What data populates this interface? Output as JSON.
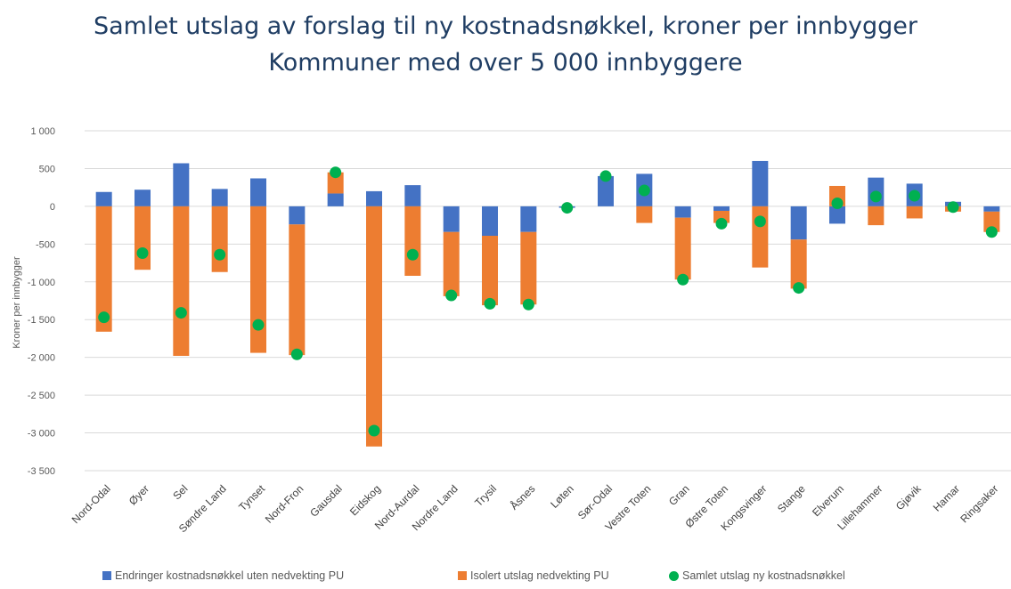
{
  "chart_data": {
    "type": "bar",
    "stacked": true,
    "title": "Samlet utslag av forslag til ny kostnadsnøkkel, kroner per innbygger",
    "subtitle": "Kommuner med over 5 000 innbyggere",
    "ylabel": "Kroner per innbygger",
    "ylim": [
      -3500,
      1000
    ],
    "yticks": [
      1000,
      500,
      0,
      -500,
      -1000,
      -1500,
      -2000,
      -2500,
      -3000,
      -3500
    ],
    "ytick_labels": [
      "1 000",
      "500",
      "0",
      "-500",
      "-1 000",
      "-1 500",
      "-2 000",
      "-2 500",
      "-3 000",
      "-3 500"
    ],
    "grid": true,
    "legend_position": "bottom",
    "categories": [
      "Nord-Odal",
      "Øyer",
      "Sel",
      "Søndre Land",
      "Tynset",
      "Nord-Fron",
      "Gausdal",
      "Eidskog",
      "Nord-Aurdal",
      "Nordre Land",
      "Trysil",
      "Åsnes",
      "Løten",
      "Sør-Odal",
      "Vestre Toten",
      "Gran",
      "Østre Toten",
      "Kongsvinger",
      "Stange",
      "Elverum",
      "Lillehammer",
      "Gjøvik",
      "Hamar",
      "Ringsaker"
    ],
    "series": [
      {
        "name": "Endringer kostnadsnøkkel uten nedvekting PU",
        "type": "bar",
        "color": "#4472c4",
        "values": [
          190,
          220,
          570,
          230,
          370,
          -240,
          170,
          200,
          280,
          -340,
          -390,
          -340,
          -20,
          400,
          430,
          -150,
          -60,
          600,
          -440,
          -230,
          380,
          300,
          60,
          -70
        ]
      },
      {
        "name": "Isolert utslag nedvekting PU",
        "type": "bar",
        "color": "#ed7d31",
        "values": [
          -1660,
          -840,
          -1980,
          -870,
          -1940,
          -1730,
          280,
          -3180,
          -920,
          -850,
          -920,
          -960,
          0,
          0,
          -220,
          -820,
          -160,
          -810,
          -650,
          270,
          -250,
          -160,
          -70,
          -270
        ]
      },
      {
        "name": "Samlet utslag ny kostnadsnøkkel",
        "type": "scatter",
        "color": "#00b050",
        "values": [
          -1470,
          -620,
          -1410,
          -640,
          -1570,
          -1960,
          450,
          -2970,
          -640,
          -1180,
          -1290,
          -1300,
          -20,
          400,
          210,
          -970,
          -230,
          -200,
          -1080,
          40,
          130,
          140,
          -10,
          -340
        ]
      }
    ]
  }
}
